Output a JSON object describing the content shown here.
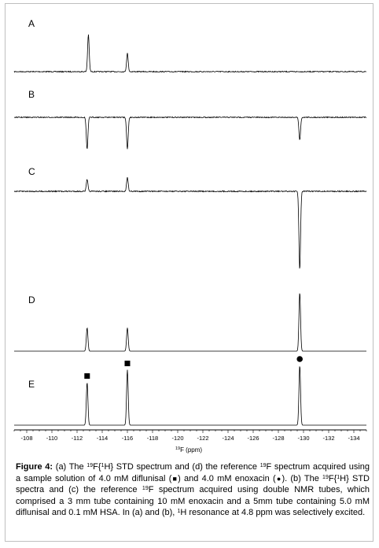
{
  "chart_data": {
    "type": "line",
    "xlabel_iso": "19",
    "xlabel_text": "F (ppm)",
    "xlim": [
      -107,
      -135
    ],
    "ticks": [
      "-108",
      "-110",
      "-112",
      "-114",
      "-116",
      "-118",
      "-120",
      "-122",
      "-124",
      "-126",
      "-128",
      "-130",
      "-132",
      "-134"
    ],
    "tick_values": [
      -108,
      -110,
      -112,
      -114,
      -116,
      -118,
      -120,
      -122,
      -124,
      -126,
      -128,
      -130,
      -132,
      -134
    ],
    "series": [
      {
        "name": "A",
        "peaks": [
          {
            "ppm": -112.9,
            "intensity": 0.9
          },
          {
            "ppm": -116.0,
            "intensity": 0.45
          }
        ]
      },
      {
        "name": "B",
        "peaks": [
          {
            "ppm": -112.8,
            "intensity": -0.7
          },
          {
            "ppm": -116.0,
            "intensity": -0.7
          },
          {
            "ppm": -129.7,
            "intensity": -0.5
          }
        ]
      },
      {
        "name": "C",
        "peaks": [
          {
            "ppm": -112.8,
            "intensity": 0.15
          },
          {
            "ppm": -116.0,
            "intensity": 0.18
          },
          {
            "ppm": -129.7,
            "intensity": -1.0
          }
        ]
      },
      {
        "name": "D",
        "peaks": [
          {
            "ppm": -112.8,
            "intensity": 0.33
          },
          {
            "ppm": -116.0,
            "intensity": 0.33
          },
          {
            "ppm": -129.7,
            "intensity": 0.83
          }
        ]
      },
      {
        "name": "E",
        "peaks": [
          {
            "ppm": -112.8,
            "intensity": 0.68,
            "marker": "square"
          },
          {
            "ppm": -116.0,
            "intensity": 0.88,
            "marker": "square"
          },
          {
            "ppm": -129.7,
            "intensity": 0.95,
            "marker": "circle"
          }
        ]
      }
    ]
  },
  "caption": {
    "label": "Figure 4:",
    "p1": " (a) The ",
    "iso_f": "19",
    "p2": "F{",
    "iso_h": "1",
    "p3": "H} STD spectrum and (d) the reference ",
    "iso_f2": "19",
    "p4": "F spectrum acquired using a sample solution of 4.0 mM diflunisal (",
    "square_symbol": "■",
    "p5": ") and 4.0 mM enoxacin (",
    "circle_symbol": "●",
    "p6": "). (b) The ",
    "iso_f3": "19",
    "p7": "F{",
    "iso_h2": "1",
    "p8": "H} STD spectra and (c) the reference ",
    "iso_f4": "19",
    "p9": "F spectrum acquired using double NMR tubes, which comprised a 3 mm tube containing 10 mM enoxacin and a 5mm tube containing 5.0 mM diflunisal and 0.1 mM HSA. In (a) and (b), ",
    "iso_h3": "1",
    "p10": "H resonance at 4.8 ppm was selectively excited."
  }
}
